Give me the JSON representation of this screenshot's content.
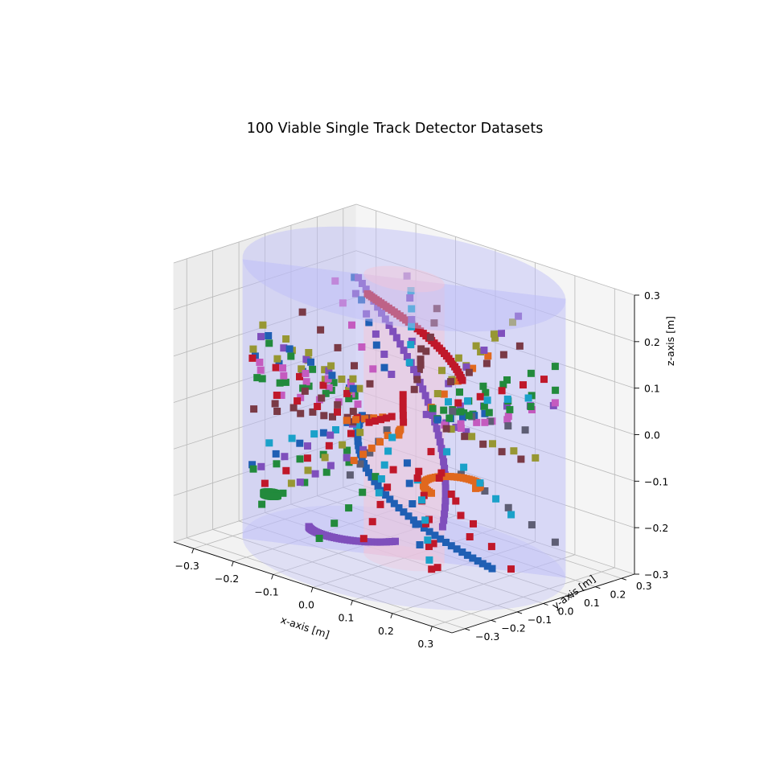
{
  "chart_data": {
    "type": "scatter3d",
    "title": "100 Viable Single Track Detector Datasets",
    "xlabel": "x-axis [m]",
    "ylabel": "y-axis [m]",
    "zlabel": "z-axis [m]",
    "xlim": [
      -0.35,
      0.35
    ],
    "ylim": [
      -0.35,
      0.35
    ],
    "zlim": [
      -0.3,
      0.3
    ],
    "x_ticks": [
      -0.3,
      -0.2,
      -0.1,
      0.0,
      0.1,
      0.2,
      0.3
    ],
    "y_ticks": [
      -0.3,
      -0.2,
      -0.1,
      0.0,
      0.1,
      0.2,
      0.3
    ],
    "z_ticks": [
      -0.3,
      -0.2,
      -0.1,
      0.0,
      0.1,
      0.2,
      0.3
    ],
    "x_tick_labels": [
      "−0.3",
      "−0.2",
      "−0.1",
      "0.0",
      "0.1",
      "0.2",
      "0.3"
    ],
    "y_tick_labels": [
      "−0.3",
      "−0.2",
      "−0.1",
      "0.0",
      "0.1",
      "0.2",
      "0.3"
    ],
    "z_tick_labels": [
      "−0.3",
      "−0.2",
      "−0.1",
      "0.0",
      "0.1",
      "0.2",
      "0.3"
    ],
    "grid": true,
    "marker": "square",
    "detector_volumes": [
      {
        "shape": "cylinder",
        "radius": 0.34,
        "z_range": [
          -0.3,
          0.3
        ],
        "color": "#bcbcf8"
      },
      {
        "shape": "cylinder",
        "radius": 0.085,
        "z_range": [
          -0.3,
          0.3
        ],
        "color": "#f3c6d6"
      }
    ],
    "colors": [
      "#1f5fb4",
      "#e0681e",
      "#228a3c",
      "#c0182a",
      "#7f4fbc",
      "#7a3a46",
      "#c45bbf",
      "#5e5e74",
      "#979733",
      "#1aa1c9"
    ],
    "n_tracks": 100,
    "hit_layer_radii": [
      0.12,
      0.17,
      0.22,
      0.27,
      0.32
    ],
    "helical_tracks": [
      {
        "color_index": 4,
        "cx": -0.1,
        "cy": 0.02,
        "r": 0.16,
        "a0": 0.3,
        "a1": 2.3,
        "z0": -0.23,
        "z1": 0.22
      },
      {
        "color_index": 0,
        "cx": 0.02,
        "cy": 0.12,
        "r": 0.18,
        "a0": 3.4,
        "a1": 5.9,
        "z0": -0.05,
        "z1": -0.28
      },
      {
        "color_index": 4,
        "cx": -0.04,
        "cy": -0.05,
        "r": 0.14,
        "a0": 3.8,
        "a1": 5.6,
        "z0": -0.25,
        "z1": -0.22
      },
      {
        "color_index": 1,
        "cx": 0.12,
        "cy": 0.0,
        "r": 0.06,
        "a0": 0.0,
        "a1": 4.5,
        "z0": -0.1,
        "z1": -0.12
      },
      {
        "color_index": 3,
        "cx": -0.05,
        "cy": 0.1,
        "r": 0.12,
        "a0": 1.0,
        "a1": 3.0,
        "z0": 0.05,
        "z1": 0.2
      },
      {
        "color_index": 2,
        "cx": -0.27,
        "cy": -0.1,
        "r": 0.015,
        "a0": 0.0,
        "a1": 6.2,
        "z0": -0.22,
        "z1": -0.22
      }
    ]
  }
}
